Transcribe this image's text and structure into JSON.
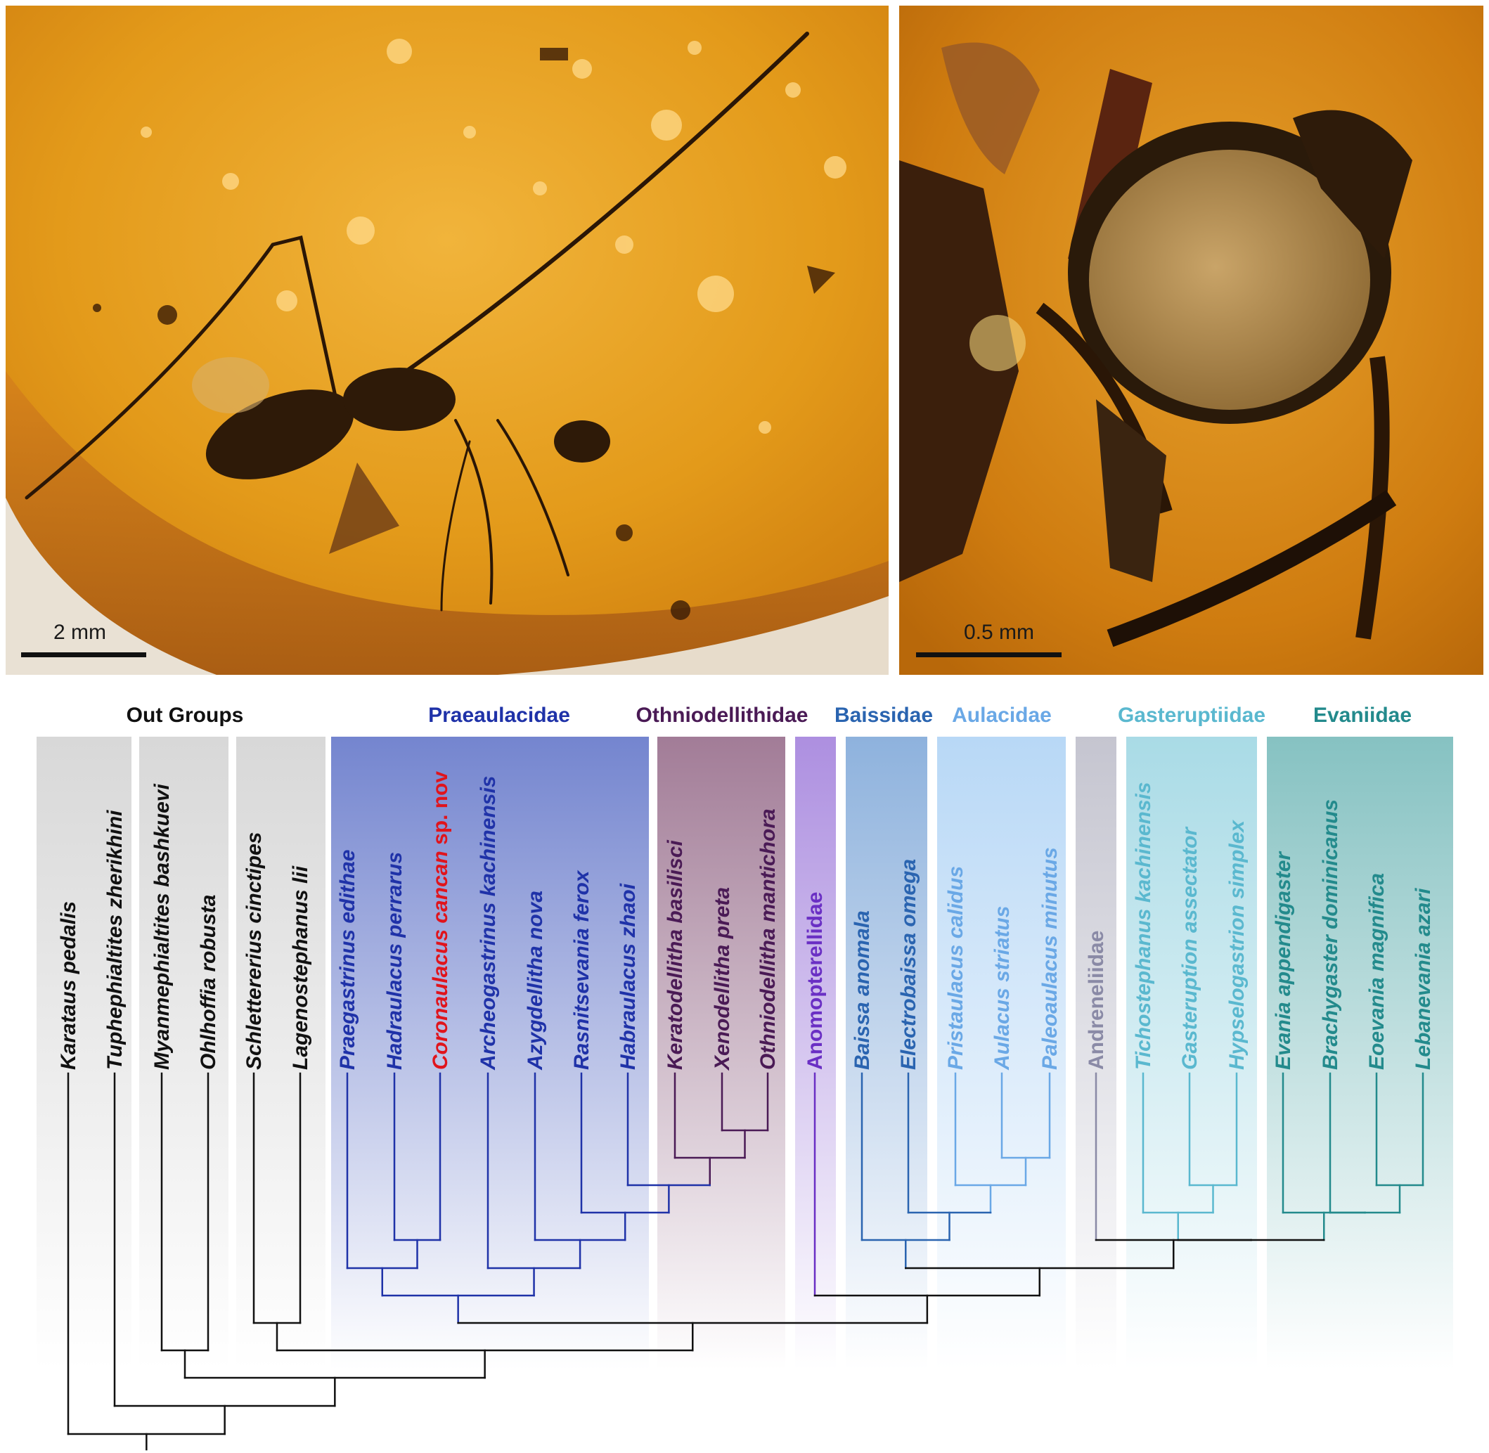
{
  "photos": {
    "left": {
      "scale_label": "2 mm"
    },
    "right": {
      "scale_label": "0.5 mm"
    }
  },
  "groups": [
    {
      "id": "outgroups",
      "label": "Out Groups",
      "color": "#111111"
    },
    {
      "id": "praeaulacidae",
      "label": "Praeaulacidae",
      "color": "#1f32a8"
    },
    {
      "id": "othniodellithidae",
      "label": "Othniodellithidae",
      "color": "#4a1a55"
    },
    {
      "id": "baissidae",
      "label": "Baissidae",
      "color": "#2a64b0"
    },
    {
      "id": "aulacidae",
      "label": "Aulacidae",
      "color": "#6aa8e6"
    },
    {
      "id": "gasteruptiidae",
      "label": "Gasteruptiidae",
      "color": "#5ab8cf"
    },
    {
      "id": "evaniidae",
      "label": "Evaniidae",
      "color": "#238a8c"
    }
  ],
  "taxa": [
    {
      "name": "Karataus pedalis",
      "group": "outgroups"
    },
    {
      "name": "Tuphephialtites zherikhini",
      "group": "outgroups"
    },
    {
      "name": "Myanmephialtites bashkuevi",
      "group": "outgroups"
    },
    {
      "name": "Ohlhoffia robusta",
      "group": "outgroups"
    },
    {
      "name": "Schlettererius cinctipes",
      "group": "outgroups"
    },
    {
      "name": "Lagenostephanus lii",
      "group": "outgroups"
    },
    {
      "name": "Praegastrinus edithae",
      "group": "praeaulacidae"
    },
    {
      "name": "Hadraulacus perrarus",
      "group": "praeaulacidae"
    },
    {
      "name": "Coronaulacus cancan",
      "suffix": " sp. nov",
      "group": "praeaulacidae",
      "highlight": "#e0141c"
    },
    {
      "name": "Archeogastrinus kachinensis",
      "group": "praeaulacidae"
    },
    {
      "name": "Azygdellitha nova",
      "group": "praeaulacidae"
    },
    {
      "name": "Rasnitsevania ferox",
      "group": "praeaulacidae"
    },
    {
      "name": "Habraulacus zhaoi",
      "group": "praeaulacidae"
    },
    {
      "name": "Keratodellitha basilisci",
      "group": "othniodellithidae"
    },
    {
      "name": "Xenodellitha preta",
      "group": "othniodellithidae"
    },
    {
      "name": "Othniodellitha mantichora",
      "group": "othniodellithidae"
    },
    {
      "name": "Anomopterellidae",
      "group": "anomopterellidae",
      "color": "#6a2fc4",
      "italic": false
    },
    {
      "name": "Baissa anomala",
      "group": "baissidae"
    },
    {
      "name": "Electrobaissa omega",
      "group": "baissidae"
    },
    {
      "name": "Pristaulacus calidus",
      "group": "aulacidae"
    },
    {
      "name": "Aulacus striatus",
      "group": "aulacidae"
    },
    {
      "name": "Paleoaulacus minutus",
      "group": "aulacidae"
    },
    {
      "name": "Andreneliidae",
      "group": "andreneliidae",
      "color": "#8a8aa6",
      "italic": false
    },
    {
      "name": "Tichostephanus kachinensis",
      "group": "gasteruptiidae"
    },
    {
      "name": "Gasteruption assectator",
      "group": "gasteruptiidae"
    },
    {
      "name": "Hypselogastrion simplex",
      "group": "gasteruptiidae"
    },
    {
      "name": "Evania appendigaster",
      "group": "evaniidae"
    },
    {
      "name": "Brachygaster dominicanus",
      "group": "evaniidae"
    },
    {
      "name": "Eoevania magnifica",
      "group": "evaniidae"
    },
    {
      "name": "Lebanevania azari",
      "group": "evaniidae"
    }
  ]
}
